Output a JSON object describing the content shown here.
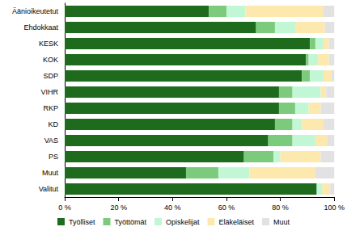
{
  "chart_data": {
    "type": "bar",
    "orientation": "horizontal",
    "stacked": true,
    "grid": false,
    "legend": "bottom",
    "categories": [
      "Äänioikeutetut",
      "Ehdokkaat",
      "KESK",
      "KOK",
      "SDP",
      "VIHR",
      "RKP",
      "KD",
      "VAS",
      "PS",
      "Muut",
      "Valitut"
    ],
    "series": [
      {
        "name": "Työlliset",
        "color": "#1e6b1e",
        "values": [
          53.5,
          71,
          91,
          89.5,
          88,
          79.5,
          79.5,
          78,
          75.5,
          66.5,
          45,
          93.5
        ]
      },
      {
        "name": "Työttömät",
        "color": "#7ccb7c",
        "values": [
          6.5,
          7,
          2,
          1,
          3,
          5,
          6,
          6.5,
          9,
          11,
          12,
          0
        ]
      },
      {
        "name": "Opiskelijat",
        "color": "#c2f7d6",
        "values": [
          7,
          7.5,
          3,
          3.5,
          5,
          10.5,
          5,
          3.5,
          8.5,
          2.5,
          11.5,
          2
        ]
      },
      {
        "name": "Eläkeläiset",
        "color": "#fde9ad",
        "values": [
          29,
          11,
          2,
          4,
          3,
          2,
          4.5,
          8,
          4.5,
          15,
          24.5,
          3
        ]
      },
      {
        "name": "Muut",
        "color": "#e2e2e2",
        "values": [
          4,
          3.5,
          2,
          2,
          1,
          3,
          5,
          4,
          2.5,
          5,
          7,
          1.5
        ]
      }
    ],
    "xlim": [
      0,
      100
    ],
    "xticks": [
      {
        "value": 0,
        "label": "0 %"
      },
      {
        "value": 20,
        "label": "20 %"
      },
      {
        "value": 40,
        "label": "40 %"
      },
      {
        "value": 60,
        "label": "60 %"
      },
      {
        "value": 80,
        "label": "80 %"
      },
      {
        "value": 100,
        "label": "100 %"
      }
    ]
  }
}
